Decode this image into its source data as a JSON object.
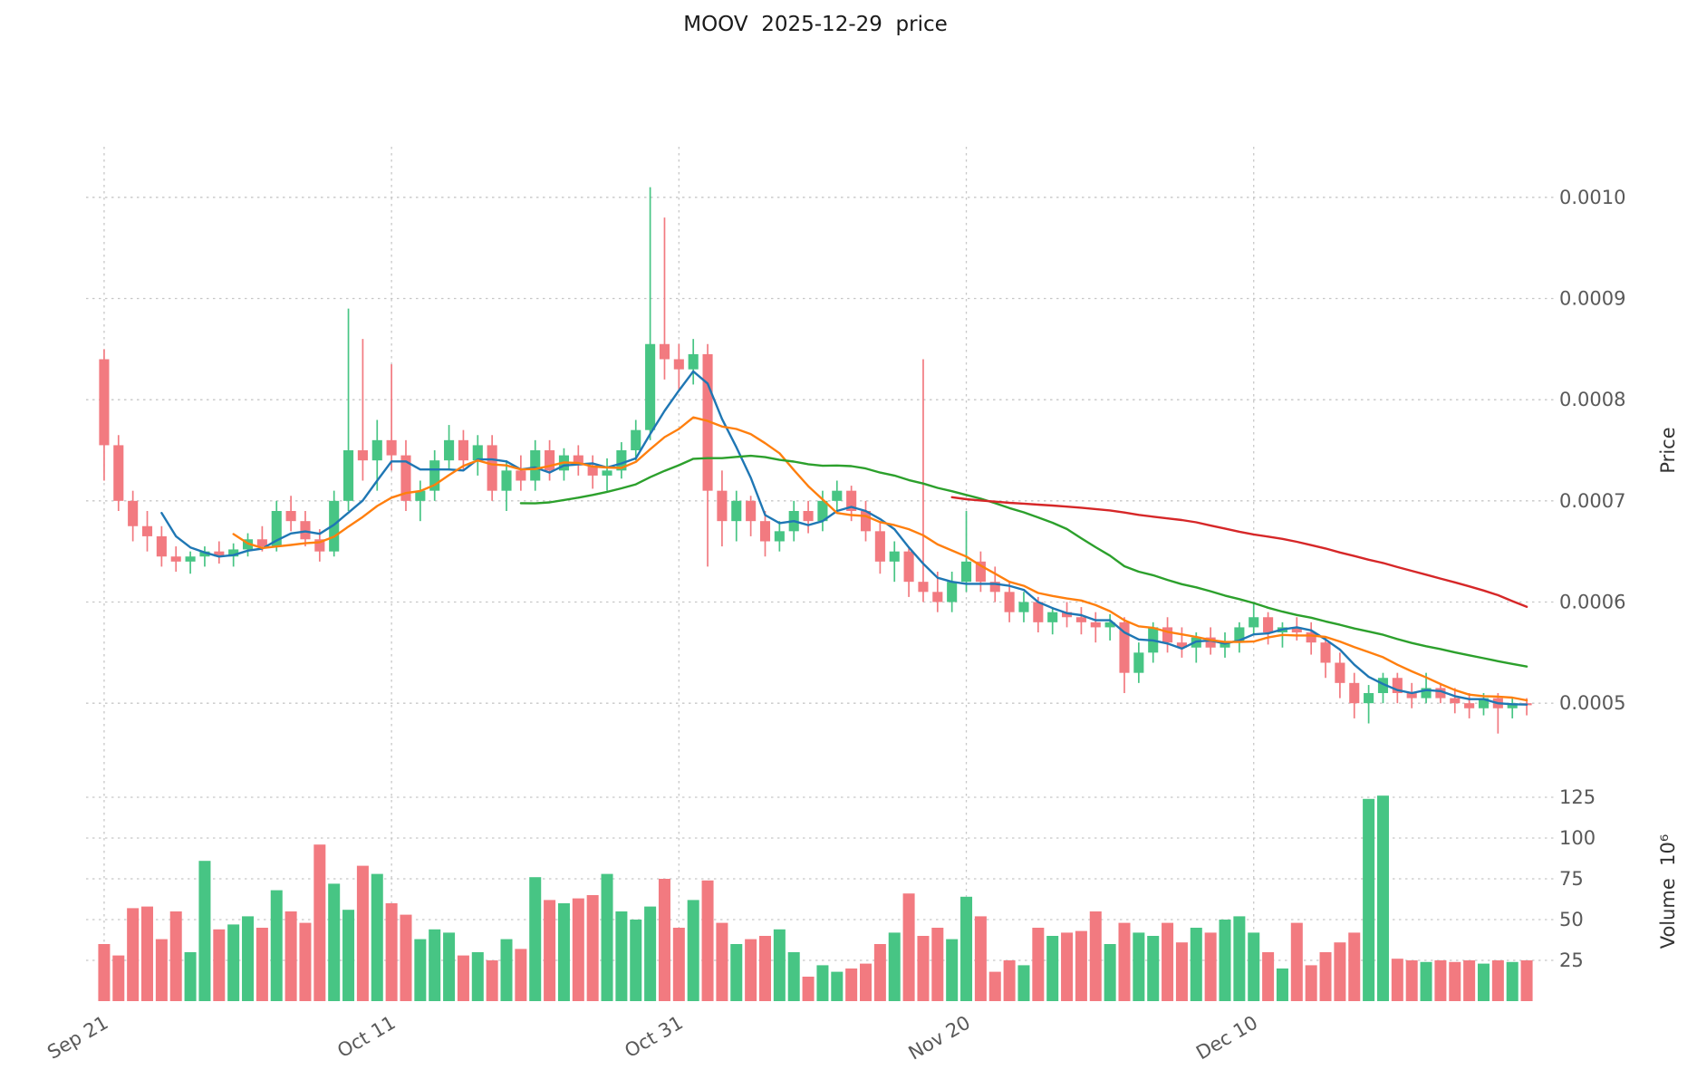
{
  "chart_data": {
    "type": "candlestick",
    "title": "MOOV  2025-12-29  price",
    "legend_position": "none",
    "grid": true,
    "x_ticks": {
      "indices": [
        0,
        20,
        40,
        60,
        80
      ],
      "labels": [
        "Sep 21",
        "Oct 11",
        "Oct 31",
        "Nov 20",
        "Dec 10"
      ]
    },
    "price_axis": {
      "label": "Price",
      "side": "right",
      "range": [
        0.00045,
        0.00105
      ],
      "ticks": [
        0.0005,
        0.0006,
        0.0007,
        0.0008,
        0.0009,
        0.001
      ],
      "tick_labels": [
        "0.0005",
        "0.0006",
        "0.0007",
        "0.0008",
        "0.0009",
        "0.0010"
      ]
    },
    "volume_axis": {
      "label": "Volume",
      "unit": "10⁶",
      "title_display": "Volume  10⁶",
      "side": "right",
      "range": [
        0,
        135
      ],
      "ticks": [
        25,
        50,
        75,
        100,
        125
      ],
      "tick_labels": [
        "25",
        "50",
        "75",
        "100",
        "125"
      ]
    },
    "indicators": [
      {
        "name": "MA5",
        "period": 5,
        "color": "#1f77b4"
      },
      {
        "name": "MA10",
        "period": 10,
        "color": "#ff7f0e"
      },
      {
        "name": "MA30",
        "period": 30,
        "color": "#2ca02c"
      },
      {
        "name": "MA60",
        "period": 60,
        "color": "#d62728"
      }
    ],
    "colors": {
      "up": "#47c584",
      "down": "#f27a80",
      "grid": "#c7c7c7",
      "tick_text": "#595959",
      "title_text": "#1a1a1a"
    },
    "dates": [
      "2025-09-21",
      "2025-09-22",
      "2025-09-23",
      "2025-09-24",
      "2025-09-25",
      "2025-09-26",
      "2025-09-27",
      "2025-09-28",
      "2025-09-29",
      "2025-09-30",
      "2025-10-01",
      "2025-10-02",
      "2025-10-03",
      "2025-10-04",
      "2025-10-05",
      "2025-10-06",
      "2025-10-07",
      "2025-10-08",
      "2025-10-09",
      "2025-10-10",
      "2025-10-11",
      "2025-10-12",
      "2025-10-13",
      "2025-10-14",
      "2025-10-15",
      "2025-10-16",
      "2025-10-17",
      "2025-10-18",
      "2025-10-19",
      "2025-10-20",
      "2025-10-21",
      "2025-10-22",
      "2025-10-23",
      "2025-10-24",
      "2025-10-25",
      "2025-10-26",
      "2025-10-27",
      "2025-10-28",
      "2025-10-29",
      "2025-10-30",
      "2025-10-31",
      "2025-11-01",
      "2025-11-02",
      "2025-11-03",
      "2025-11-04",
      "2025-11-05",
      "2025-11-06",
      "2025-11-07",
      "2025-11-08",
      "2025-11-09",
      "2025-11-10",
      "2025-11-11",
      "2025-11-12",
      "2025-11-13",
      "2025-11-14",
      "2025-11-15",
      "2025-11-16",
      "2025-11-17",
      "2025-11-18",
      "2025-11-19",
      "2025-11-20",
      "2025-11-21",
      "2025-11-22",
      "2025-11-23",
      "2025-11-24",
      "2025-11-25",
      "2025-11-26",
      "2025-11-27",
      "2025-11-28",
      "2025-11-29",
      "2025-11-30",
      "2025-12-01",
      "2025-12-02",
      "2025-12-03",
      "2025-12-04",
      "2025-12-05",
      "2025-12-06",
      "2025-12-07",
      "2025-12-08",
      "2025-12-09",
      "2025-12-10",
      "2025-12-11",
      "2025-12-12",
      "2025-12-13",
      "2025-12-14",
      "2025-12-15",
      "2025-12-16",
      "2025-12-17",
      "2025-12-18",
      "2025-12-19",
      "2025-12-20",
      "2025-12-21",
      "2025-12-22",
      "2025-12-23",
      "2025-12-24",
      "2025-12-25",
      "2025-12-26",
      "2025-12-27",
      "2025-12-28",
      "2025-12-29"
    ],
    "ohlc": [
      [
        0.00084,
        0.00085,
        0.00072,
        0.000755
      ],
      [
        0.000755,
        0.000765,
        0.00069,
        0.0007
      ],
      [
        0.0007,
        0.00071,
        0.00066,
        0.000675
      ],
      [
        0.000675,
        0.00069,
        0.00065,
        0.000665
      ],
      [
        0.000665,
        0.000675,
        0.000635,
        0.000645
      ],
      [
        0.000645,
        0.000655,
        0.00063,
        0.00064
      ],
      [
        0.00064,
        0.00065,
        0.000628,
        0.000645
      ],
      [
        0.000645,
        0.000655,
        0.000635,
        0.00065
      ],
      [
        0.00065,
        0.00066,
        0.000638,
        0.000645
      ],
      [
        0.000645,
        0.000658,
        0.000635,
        0.000652
      ],
      [
        0.000652,
        0.000668,
        0.000645,
        0.000662
      ],
      [
        0.000662,
        0.000675,
        0.00065,
        0.000655
      ],
      [
        0.000655,
        0.0007,
        0.00065,
        0.00069
      ],
      [
        0.00069,
        0.000705,
        0.00067,
        0.00068
      ],
      [
        0.00068,
        0.00069,
        0.000655,
        0.000662
      ],
      [
        0.000662,
        0.000672,
        0.00064,
        0.00065
      ],
      [
        0.00065,
        0.00071,
        0.000645,
        0.0007
      ],
      [
        0.0007,
        0.00089,
        0.00069,
        0.00075
      ],
      [
        0.00075,
        0.00086,
        0.00072,
        0.00074
      ],
      [
        0.00074,
        0.00078,
        0.00071,
        0.00076
      ],
      [
        0.00076,
        0.000835,
        0.00073,
        0.000745
      ],
      [
        0.000745,
        0.00076,
        0.00069,
        0.0007
      ],
      [
        0.0007,
        0.00072,
        0.00068,
        0.00071
      ],
      [
        0.00071,
        0.00075,
        0.0007,
        0.00074
      ],
      [
        0.00074,
        0.000775,
        0.00073,
        0.00076
      ],
      [
        0.00076,
        0.00077,
        0.00073,
        0.00074
      ],
      [
        0.00074,
        0.000765,
        0.000725,
        0.000755
      ],
      [
        0.000755,
        0.000765,
        0.0007,
        0.00071
      ],
      [
        0.00071,
        0.00074,
        0.00069,
        0.00073
      ],
      [
        0.00073,
        0.000745,
        0.00071,
        0.00072
      ],
      [
        0.00072,
        0.00076,
        0.00071,
        0.00075
      ],
      [
        0.00075,
        0.00076,
        0.00072,
        0.00073
      ],
      [
        0.00073,
        0.000752,
        0.00072,
        0.000745
      ],
      [
        0.000745,
        0.000755,
        0.000725,
        0.000735
      ],
      [
        0.000735,
        0.000745,
        0.000712,
        0.000725
      ],
      [
        0.000725,
        0.000742,
        0.00071,
        0.00073
      ],
      [
        0.00073,
        0.000758,
        0.000722,
        0.00075
      ],
      [
        0.00075,
        0.00078,
        0.00074,
        0.00077
      ],
      [
        0.00077,
        0.00101,
        0.00076,
        0.000855
      ],
      [
        0.000855,
        0.00098,
        0.00082,
        0.00084
      ],
      [
        0.00084,
        0.000855,
        0.00081,
        0.00083
      ],
      [
        0.00083,
        0.00086,
        0.000815,
        0.000845
      ],
      [
        0.000845,
        0.000855,
        0.000635,
        0.00071
      ],
      [
        0.00071,
        0.00073,
        0.000655,
        0.00068
      ],
      [
        0.00068,
        0.00071,
        0.00066,
        0.0007
      ],
      [
        0.0007,
        0.000705,
        0.000665,
        0.00068
      ],
      [
        0.00068,
        0.00069,
        0.000645,
        0.00066
      ],
      [
        0.00066,
        0.00068,
        0.00065,
        0.00067
      ],
      [
        0.00067,
        0.0007,
        0.00066,
        0.00069
      ],
      [
        0.00069,
        0.0007,
        0.000668,
        0.00068
      ],
      [
        0.00068,
        0.00071,
        0.00067,
        0.0007
      ],
      [
        0.0007,
        0.00072,
        0.00069,
        0.00071
      ],
      [
        0.00071,
        0.000715,
        0.00068,
        0.00069
      ],
      [
        0.00069,
        0.0007,
        0.00066,
        0.00067
      ],
      [
        0.00067,
        0.00068,
        0.000628,
        0.00064
      ],
      [
        0.00064,
        0.00066,
        0.00062,
        0.00065
      ],
      [
        0.00065,
        0.000655,
        0.000605,
        0.00062
      ],
      [
        0.00062,
        0.00084,
        0.0006,
        0.00061
      ],
      [
        0.00061,
        0.00063,
        0.00059,
        0.0006
      ],
      [
        0.0006,
        0.00063,
        0.00059,
        0.00062
      ],
      [
        0.00062,
        0.00069,
        0.00061,
        0.00064
      ],
      [
        0.00064,
        0.00065,
        0.00061,
        0.00062
      ],
      [
        0.00062,
        0.000635,
        0.0006,
        0.00061
      ],
      [
        0.00061,
        0.00062,
        0.00058,
        0.00059
      ],
      [
        0.00059,
        0.00061,
        0.00058,
        0.0006
      ],
      [
        0.0006,
        0.000605,
        0.00057,
        0.00058
      ],
      [
        0.00058,
        0.000595,
        0.000568,
        0.00059
      ],
      [
        0.00059,
        0.0006,
        0.000575,
        0.000585
      ],
      [
        0.000585,
        0.000595,
        0.000568,
        0.00058
      ],
      [
        0.00058,
        0.00059,
        0.00056,
        0.000575
      ],
      [
        0.000575,
        0.000588,
        0.000562,
        0.00058
      ],
      [
        0.00058,
        0.000585,
        0.00051,
        0.00053
      ],
      [
        0.00053,
        0.00056,
        0.00052,
        0.00055
      ],
      [
        0.00055,
        0.00058,
        0.00054,
        0.000575
      ],
      [
        0.000575,
        0.000585,
        0.00055,
        0.00056
      ],
      [
        0.00056,
        0.000575,
        0.000545,
        0.000555
      ],
      [
        0.000555,
        0.00057,
        0.00054,
        0.000565
      ],
      [
        0.000565,
        0.000575,
        0.000548,
        0.000555
      ],
      [
        0.000555,
        0.00057,
        0.000545,
        0.00056
      ],
      [
        0.00056,
        0.00058,
        0.00055,
        0.000575
      ],
      [
        0.000575,
        0.0006,
        0.000568,
        0.000585
      ],
      [
        0.000585,
        0.00059,
        0.000558,
        0.00057
      ],
      [
        0.00057,
        0.00058,
        0.000555,
        0.000575
      ],
      [
        0.000575,
        0.000585,
        0.000562,
        0.00057
      ],
      [
        0.00057,
        0.00058,
        0.000548,
        0.00056
      ],
      [
        0.00056,
        0.000565,
        0.000525,
        0.00054
      ],
      [
        0.00054,
        0.00055,
        0.000505,
        0.00052
      ],
      [
        0.00052,
        0.00053,
        0.000485,
        0.0005
      ],
      [
        0.0005,
        0.000518,
        0.00048,
        0.00051
      ],
      [
        0.00051,
        0.00053,
        0.0005,
        0.000525
      ],
      [
        0.000525,
        0.00053,
        0.0005,
        0.00051
      ],
      [
        0.00051,
        0.00052,
        0.000495,
        0.000505
      ],
      [
        0.000505,
        0.00053,
        0.0005,
        0.000515
      ],
      [
        0.000515,
        0.00052,
        0.0005,
        0.000505
      ],
      [
        0.000505,
        0.000515,
        0.00049,
        0.0005
      ],
      [
        0.0005,
        0.00051,
        0.000485,
        0.000495
      ],
      [
        0.000495,
        0.00051,
        0.000488,
        0.000505
      ],
      [
        0.000505,
        0.00051,
        0.00047,
        0.000495
      ],
      [
        0.000495,
        0.000505,
        0.000485,
        0.0005
      ],
      [
        0.0005,
        0.000505,
        0.000488,
        0.000498
      ]
    ],
    "volume_millions": [
      35,
      28,
      57,
      58,
      38,
      55,
      30,
      86,
      44,
      47,
      52,
      45,
      68,
      55,
      48,
      96,
      72,
      56,
      83,
      78,
      60,
      53,
      38,
      44,
      42,
      28,
      30,
      25,
      38,
      32,
      76,
      62,
      60,
      63,
      65,
      78,
      55,
      50,
      58,
      75,
      45,
      62,
      74,
      48,
      35,
      38,
      40,
      44,
      30,
      15,
      22,
      18,
      20,
      23,
      35,
      42,
      66,
      40,
      45,
      38,
      64,
      52,
      18,
      25,
      22,
      45,
      40,
      42,
      43,
      55,
      35,
      48,
      42,
      40,
      48,
      36,
      45,
      42,
      50,
      52,
      42,
      30,
      20,
      48,
      22,
      30,
      36,
      42,
      124,
      126,
      26,
      25,
      24,
      25,
      24,
      25,
      23,
      25,
      24,
      25
    ]
  }
}
